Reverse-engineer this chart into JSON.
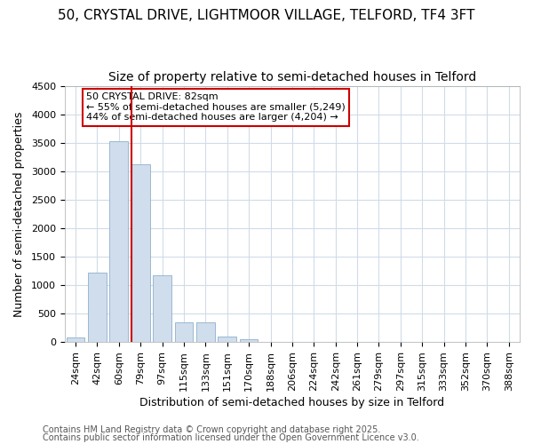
{
  "title_line1": "50, CRYSTAL DRIVE, LIGHTMOOR VILLAGE, TELFORD, TF4 3FT",
  "title_line2": "Size of property relative to semi-detached houses in Telford",
  "xlabel": "Distribution of semi-detached houses by size in Telford",
  "ylabel": "Number of semi-detached properties",
  "categories": [
    "24sqm",
    "42sqm",
    "60sqm",
    "79sqm",
    "97sqm",
    "115sqm",
    "133sqm",
    "151sqm",
    "170sqm",
    "188sqm",
    "206sqm",
    "224sqm",
    "242sqm",
    "261sqm",
    "279sqm",
    "297sqm",
    "315sqm",
    "333sqm",
    "352sqm",
    "370sqm",
    "388sqm"
  ],
  "values": [
    75,
    1225,
    3525,
    3125,
    1175,
    340,
    340,
    90,
    50,
    5,
    5,
    0,
    0,
    0,
    0,
    0,
    0,
    0,
    0,
    0,
    0
  ],
  "bar_color": "#cfdded",
  "bar_edge_color": "#8fb0cc",
  "vline_color": "#cc0000",
  "vline_bin_index": 3,
  "annotation_text": "50 CRYSTAL DRIVE: 82sqm\n← 55% of semi-detached houses are smaller (5,249)\n44% of semi-detached houses are larger (4,204) →",
  "annotation_box_facecolor": "#ffffff",
  "annotation_box_edgecolor": "#cc0000",
  "ylim": [
    0,
    4500
  ],
  "yticks": [
    0,
    500,
    1000,
    1500,
    2000,
    2500,
    3000,
    3500,
    4000,
    4500
  ],
  "background_color": "#ffffff",
  "grid_color": "#d0dce8",
  "title1_fontsize": 11,
  "title2_fontsize": 10,
  "axis_label_fontsize": 9,
  "tick_fontsize": 8,
  "annot_fontsize": 8,
  "footer_fontsize": 7,
  "footer_line1": "Contains HM Land Registry data © Crown copyright and database right 2025.",
  "footer_line2": "Contains public sector information licensed under the Open Government Licence v3.0."
}
